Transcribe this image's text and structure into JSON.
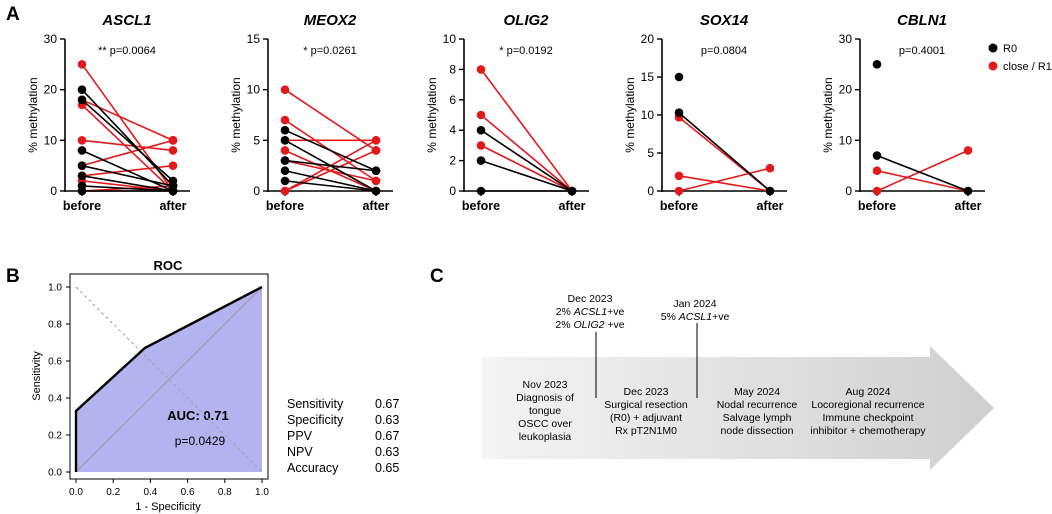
{
  "panels": {
    "a": "A",
    "b": "B",
    "c": "C"
  },
  "legend": {
    "r0": "R0",
    "r1": "close / R1",
    "r0_color": "#000000",
    "r1_color": "#e31a1c"
  },
  "chart_data": [
    {
      "type": "line",
      "gene": "ASCL1",
      "pvalue": "** p=0.0064",
      "ylabel": "% methylation",
      "categories": [
        "before",
        "after"
      ],
      "ylim": [
        0,
        30
      ],
      "yticks": [
        "0",
        "10",
        "20",
        "30"
      ],
      "series": [
        {
          "group": "R0",
          "values": [
            20,
            1
          ]
        },
        {
          "group": "R0",
          "values": [
            18,
            2
          ]
        },
        {
          "group": "R0",
          "values": [
            8,
            0
          ]
        },
        {
          "group": "R0",
          "values": [
            5,
            1
          ]
        },
        {
          "group": "R0",
          "values": [
            3,
            0
          ]
        },
        {
          "group": "R0",
          "values": [
            1,
            0
          ]
        },
        {
          "group": "R0",
          "values": [
            0,
            0
          ]
        },
        {
          "group": "close / R1",
          "values": [
            25,
            0
          ]
        },
        {
          "group": "close / R1",
          "values": [
            18,
            10
          ]
        },
        {
          "group": "close / R1",
          "values": [
            17,
            0
          ]
        },
        {
          "group": "close / R1",
          "values": [
            10,
            8
          ]
        },
        {
          "group": "close / R1",
          "values": [
            5,
            10
          ]
        },
        {
          "group": "close / R1",
          "values": [
            3,
            5
          ]
        },
        {
          "group": "close / R1",
          "values": [
            2,
            0
          ]
        },
        {
          "group": "close / R1",
          "values": [
            0,
            1
          ]
        }
      ]
    },
    {
      "type": "line",
      "gene": "MEOX2",
      "pvalue": "* p=0.0261",
      "ylabel": "% methylation",
      "categories": [
        "before",
        "after"
      ],
      "ylim": [
        0,
        15
      ],
      "yticks": [
        "0",
        "5",
        "10",
        "15"
      ],
      "series": [
        {
          "group": "R0",
          "values": [
            6,
            2
          ]
        },
        {
          "group": "R0",
          "values": [
            5,
            0
          ]
        },
        {
          "group": "R0",
          "values": [
            3,
            2
          ]
        },
        {
          "group": "R0",
          "values": [
            2,
            0
          ]
        },
        {
          "group": "R0",
          "values": [
            1,
            0
          ]
        },
        {
          "group": "close / R1",
          "values": [
            10,
            4
          ]
        },
        {
          "group": "close / R1",
          "values": [
            7,
            1
          ]
        },
        {
          "group": "close / R1",
          "values": [
            5,
            5
          ]
        },
        {
          "group": "close / R1",
          "values": [
            4,
            0
          ]
        },
        {
          "group": "close / R1",
          "values": [
            3,
            1
          ]
        },
        {
          "group": "close / R1",
          "values": [
            0,
            5
          ]
        },
        {
          "group": "close / R1",
          "values": [
            0,
            4
          ]
        }
      ]
    },
    {
      "type": "line",
      "gene": "OLIG2",
      "pvalue": "* p=0.0192",
      "ylabel": "% methylation",
      "categories": [
        "before",
        "after"
      ],
      "ylim": [
        0,
        10
      ],
      "yticks": [
        "0",
        "2",
        "4",
        "6",
        "8",
        "10"
      ],
      "series": [
        {
          "group": "R0",
          "values": [
            4,
            0
          ]
        },
        {
          "group": "R0",
          "values": [
            2,
            0
          ]
        },
        {
          "group": "R0",
          "values": [
            0,
            0
          ]
        },
        {
          "group": "close / R1",
          "values": [
            8,
            0
          ]
        },
        {
          "group": "close / R1",
          "values": [
            5,
            0
          ]
        },
        {
          "group": "close / R1",
          "values": [
            3,
            0
          ]
        }
      ]
    },
    {
      "type": "line",
      "gene": "SOX14",
      "pvalue": "p=0.0804",
      "ylabel": "% methylation",
      "categories": [
        "before",
        "after"
      ],
      "ylim": [
        0,
        20
      ],
      "yticks": [
        "0",
        "5",
        "10",
        "15",
        "20"
      ],
      "series": [
        {
          "group": "R0",
          "values": [
            15,
            null
          ]
        },
        {
          "group": "R0",
          "values": [
            10.3,
            0
          ]
        },
        {
          "group": "close / R1",
          "values": [
            9.7,
            0
          ]
        },
        {
          "group": "close / R1",
          "values": [
            2,
            0
          ]
        },
        {
          "group": "close / R1",
          "values": [
            0,
            3
          ]
        }
      ]
    },
    {
      "type": "line",
      "gene": "CBLN1",
      "pvalue": "p=0.4001",
      "ylabel": "% methylation",
      "categories": [
        "before",
        "after"
      ],
      "ylim": [
        0,
        30
      ],
      "yticks": [
        "0",
        "10",
        "20",
        "30"
      ],
      "series": [
        {
          "group": "R0",
          "values": [
            25,
            null
          ]
        },
        {
          "group": "R0",
          "values": [
            7,
            0
          ]
        },
        {
          "group": "close / R1",
          "values": [
            4,
            0
          ]
        },
        {
          "group": "close / R1",
          "values": [
            0,
            8
          ]
        }
      ]
    },
    {
      "type": "line",
      "title": "ROC",
      "xlabel": "1 - Specificity",
      "ylabel": "Sensitivity",
      "xlim": [
        0,
        1
      ],
      "ylim": [
        0,
        1
      ],
      "xticks": [
        "0.0",
        "0.2",
        "0.4",
        "0.6",
        "0.8",
        "1.0"
      ],
      "yticks": [
        "0.0",
        "0.2",
        "0.4",
        "0.6",
        "0.8",
        "1.0"
      ],
      "curve": {
        "x": [
          0,
          0,
          0.37,
          1
        ],
        "y": [
          0,
          0.33,
          0.67,
          1
        ]
      },
      "auc_label": "AUC: 0.71",
      "auc_pvalue": "p=0.0429",
      "fill_color": "#b3b3f0"
    }
  ],
  "metrics": [
    {
      "name": "Sensitivity",
      "value": "0.67"
    },
    {
      "name": "Specificity",
      "value": "0.63"
    },
    {
      "name": "PPV",
      "value": "0.67"
    },
    {
      "name": "NPV",
      "value": "0.63"
    },
    {
      "name": "Accuracy",
      "value": "0.65"
    }
  ],
  "timeline": {
    "events": [
      {
        "lines": [
          "Nov 2023",
          "Diagnosis of",
          "tongue",
          "OSCC over",
          "leukoplasia"
        ]
      },
      {
        "lines": [
          "Dec 2023",
          "Surgical resection",
          "(R0) + adjuvant",
          "Rx pT2N1M0"
        ]
      },
      {
        "lines": [
          "May 2024",
          "Nodal recurrence",
          "Salvage lymph",
          "node dissection"
        ]
      },
      {
        "lines": [
          "Aug 2024",
          "Locoregional recurrence",
          "Immune checkpoint",
          "inhibitor + chemotherapy"
        ]
      }
    ],
    "callouts": [
      {
        "date": "Dec 2023",
        "lines": [
          {
            "pct": "2%",
            "gene": "ACSL1",
            "suffix": "+ve"
          },
          {
            "pct": "2%",
            "gene": "OLIG2",
            "suffix": " +ve"
          }
        ]
      },
      {
        "date": "Jan 2024",
        "lines": [
          {
            "pct": "5%",
            "gene": "ACSL1",
            "suffix": "+ve"
          }
        ]
      }
    ]
  }
}
